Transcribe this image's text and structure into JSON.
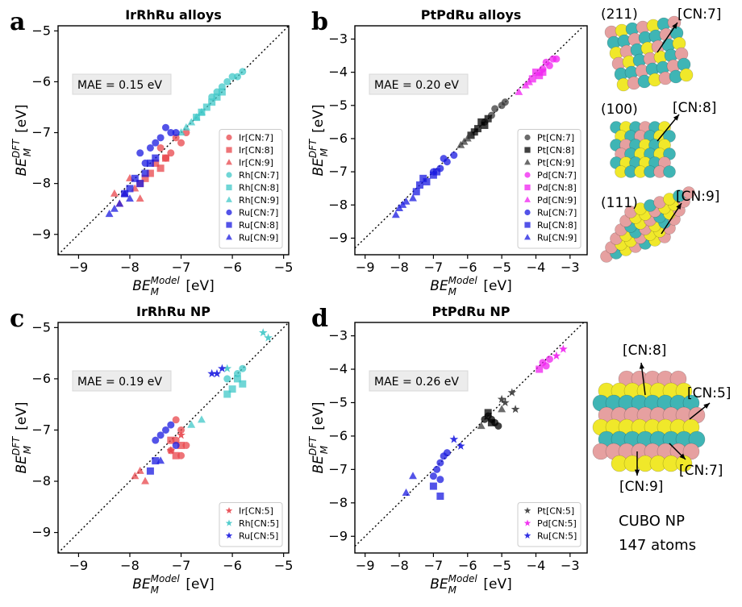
{
  "panel_letters": {
    "a": "a",
    "b": "b",
    "c": "c",
    "d": "d"
  },
  "side_panel": {
    "inset_211": {
      "facet": "(211)",
      "label": "[CN:7]"
    },
    "inset_100": {
      "facet": "(100)",
      "label": "[CN:8]"
    },
    "inset_111": {
      "facet": "(111)",
      "label": "[CN:9]"
    },
    "cubo_labels": {
      "cn8": "[CN:8]",
      "cn5": "[CN:5]",
      "cn7": "[CN:7]",
      "cn9": "[CN:9]"
    },
    "cubo_title": "CUBO NP",
    "cubo_atoms": "147 atoms"
  },
  "colors": {
    "red": "#e8454b",
    "cyan": "#40c8c8",
    "blue": "#1a1ae0",
    "grey": "#3a3a3a",
    "black": "#000000",
    "magenta": "#f020f0",
    "pink_atom": "#e6a0a0",
    "teal_atom": "#3fb5b5",
    "yellow_atom": "#f0e82a"
  },
  "chart_data": [
    {
      "id": "a",
      "type": "scatter",
      "title": "IrRhRu alloys",
      "xlabel_base": "BE",
      "xlabel_sub": "M",
      "xlabel_sup": "Model",
      "xlabel_unit": "[eV]",
      "ylabel_base": "BE",
      "ylabel_sub": "M",
      "ylabel_sup": "DFT",
      "ylabel_unit": "[eV]",
      "xlim": [
        -9.4,
        -4.9
      ],
      "ylim": [
        -9.4,
        -4.9
      ],
      "xticks": [
        -9,
        -8,
        -7,
        -6,
        -5
      ],
      "yticks": [
        -9,
        -8,
        -7,
        -6,
        -5
      ],
      "mae": "MAE = 0.15 eV",
      "legend_loc": "lower-right",
      "series": [
        {
          "name": "Ir[CN:7]",
          "color": "red",
          "marker": "circle",
          "x": [
            -7.2,
            -7.0,
            -7.4,
            -7.1,
            -6.9,
            -7.3
          ],
          "y": [
            -7.4,
            -7.2,
            -7.3,
            -7.1,
            -7.0,
            -7.5
          ]
        },
        {
          "name": "Ir[CN:8]",
          "color": "red",
          "marker": "square",
          "x": [
            -7.6,
            -7.5,
            -7.7,
            -7.4,
            -7.8,
            -7.3
          ],
          "y": [
            -7.8,
            -7.6,
            -7.9,
            -7.7,
            -8.0,
            -7.5
          ]
        },
        {
          "name": "Ir[CN:9]",
          "color": "red",
          "marker": "triangle",
          "x": [
            -8.1,
            -7.9,
            -8.2,
            -8.0,
            -7.8,
            -8.3
          ],
          "y": [
            -8.2,
            -8.1,
            -8.4,
            -7.9,
            -8.3,
            -8.2
          ]
        },
        {
          "name": "Rh[CN:7]",
          "color": "cyan",
          "marker": "circle",
          "x": [
            -6.1,
            -5.9,
            -6.3,
            -6.0,
            -5.8,
            -6.2,
            -6.4
          ],
          "y": [
            -6.0,
            -5.9,
            -6.2,
            -5.9,
            -5.8,
            -6.1,
            -6.3
          ]
        },
        {
          "name": "Rh[CN:8]",
          "color": "cyan",
          "marker": "square",
          "x": [
            -6.5,
            -6.3,
            -6.7,
            -6.4,
            -6.6,
            -6.2
          ],
          "y": [
            -6.5,
            -6.3,
            -6.7,
            -6.4,
            -6.6,
            -6.2
          ]
        },
        {
          "name": "Rh[CN:9]",
          "color": "cyan",
          "marker": "triangle",
          "x": [
            -6.9,
            -6.8,
            -7.0,
            -6.7,
            -6.6
          ],
          "y": [
            -6.9,
            -6.8,
            -7.0,
            -6.7,
            -6.6
          ]
        },
        {
          "name": "Ru[CN:7]",
          "color": "blue",
          "marker": "circle",
          "x": [
            -7.4,
            -7.6,
            -7.2,
            -7.8,
            -7.5,
            -7.3,
            -7.7,
            -7.1
          ],
          "y": [
            -7.1,
            -7.3,
            -7.0,
            -7.4,
            -7.2,
            -6.9,
            -7.6,
            -7.0
          ]
        },
        {
          "name": "Ru[CN:8]",
          "color": "blue",
          "marker": "square",
          "x": [
            -7.9,
            -7.7,
            -8.0,
            -7.6,
            -7.5,
            -8.1,
            -7.8
          ],
          "y": [
            -7.9,
            -7.8,
            -8.1,
            -7.6,
            -7.5,
            -8.2,
            -8.0
          ]
        },
        {
          "name": "Ru[CN:9]",
          "color": "blue",
          "marker": "triangle",
          "x": [
            -8.2,
            -8.1,
            -8.3,
            -8.0,
            -8.4
          ],
          "y": [
            -8.4,
            -8.2,
            -8.5,
            -8.3,
            -8.6
          ]
        }
      ]
    },
    {
      "id": "b",
      "type": "scatter",
      "title": "PtPdRu alloys",
      "xlabel_base": "BE",
      "xlabel_sub": "M",
      "xlabel_sup": "Model",
      "xlabel_unit": "[eV]",
      "ylabel_base": "BE",
      "ylabel_sub": "M",
      "ylabel_sup": "DFT",
      "ylabel_unit": "[eV]",
      "xlim": [
        -9.3,
        -2.5
      ],
      "ylim": [
        -9.5,
        -2.6
      ],
      "xticks": [
        -9,
        -8,
        -7,
        -6,
        -5,
        -4,
        -3
      ],
      "yticks": [
        -9,
        -8,
        -7,
        -6,
        -5,
        -4,
        -3
      ],
      "mae": "MAE = 0.20 eV",
      "legend_loc": "lower-right",
      "series": [
        {
          "name": "Pt[CN:7]",
          "color": "grey",
          "marker": "circle",
          "x": [
            -5.3,
            -5.0,
            -5.5,
            -4.9,
            -5.2
          ],
          "y": [
            -5.3,
            -5.0,
            -5.5,
            -4.9,
            -5.1
          ]
        },
        {
          "name": "Pt[CN:8]",
          "color": "black",
          "marker": "square",
          "x": [
            -5.7,
            -5.5,
            -5.9,
            -5.6,
            -5.8,
            -5.4
          ],
          "y": [
            -5.7,
            -5.6,
            -5.9,
            -5.5,
            -5.8,
            -5.4
          ]
        },
        {
          "name": "Pt[CN:9]",
          "color": "grey",
          "marker": "triangle",
          "x": [
            -6.1,
            -6.0,
            -6.2,
            -5.9
          ],
          "y": [
            -6.1,
            -6.0,
            -6.2,
            -5.9
          ]
        },
        {
          "name": "Pd[CN:7]",
          "color": "magenta",
          "marker": "circle",
          "x": [
            -3.6,
            -3.5,
            -3.8,
            -3.4,
            -3.7
          ],
          "y": [
            -3.8,
            -3.6,
            -3.9,
            -3.6,
            -3.7
          ]
        },
        {
          "name": "Pd[CN:8]",
          "color": "magenta",
          "marker": "square",
          "x": [
            -3.9,
            -4.0,
            -3.8,
            -4.1
          ],
          "y": [
            -4.1,
            -4.0,
            -4.0,
            -4.2
          ]
        },
        {
          "name": "Pd[CN:9]",
          "color": "magenta",
          "marker": "triangle",
          "x": [
            -4.3,
            -4.5,
            -4.2
          ],
          "y": [
            -4.4,
            -4.6,
            -4.3
          ]
        },
        {
          "name": "Ru[CN:7]",
          "color": "blue",
          "marker": "circle",
          "x": [
            -6.6,
            -6.8,
            -6.4,
            -7.0,
            -6.7
          ],
          "y": [
            -6.7,
            -6.9,
            -6.5,
            -7.0,
            -6.6
          ]
        },
        {
          "name": "Ru[CN:8]",
          "color": "blue",
          "marker": "square",
          "x": [
            -7.2,
            -7.4,
            -7.0,
            -7.5,
            -7.3,
            -6.9
          ],
          "y": [
            -7.3,
            -7.4,
            -7.1,
            -7.6,
            -7.2,
            -7.0
          ]
        },
        {
          "name": "Ru[CN:9]",
          "color": "blue",
          "marker": "triangle",
          "x": [
            -7.8,
            -8.0,
            -7.6,
            -8.1,
            -7.9
          ],
          "y": [
            -7.9,
            -8.1,
            -7.8,
            -8.3,
            -8.0
          ]
        }
      ]
    },
    {
      "id": "c",
      "type": "scatter",
      "title": "IrRhRu NP",
      "xlabel_base": "BE",
      "xlabel_sub": "M",
      "xlabel_sup": "Model",
      "xlabel_unit": "[eV]",
      "ylabel_base": "BE",
      "ylabel_sub": "M",
      "ylabel_sup": "DFT",
      "ylabel_unit": "[eV]",
      "xlim": [
        -9.4,
        -4.9
      ],
      "ylim": [
        -9.4,
        -4.9
      ],
      "xticks": [
        -9,
        -8,
        -7,
        -6,
        -5
      ],
      "yticks": [
        -9,
        -8,
        -7,
        -6,
        -5
      ],
      "mae": "MAE = 0.19 eV",
      "legend_loc": "lower-right",
      "scatter_bg": [
        {
          "color": "red",
          "marker": "circle",
          "x": [
            -7.0,
            -7.1,
            -6.9,
            -7.2,
            -7.0,
            -7.1
          ],
          "y": [
            -7.0,
            -7.2,
            -7.3,
            -7.4,
            -7.5,
            -6.8
          ]
        },
        {
          "color": "red",
          "marker": "square",
          "x": [
            -7.0,
            -7.1,
            -7.2
          ],
          "y": [
            -7.3,
            -7.5,
            -7.2
          ]
        },
        {
          "color": "red",
          "marker": "triangle",
          "x": [
            -7.9,
            -7.8,
            -7.7
          ],
          "y": [
            -7.9,
            -7.8,
            -8.0
          ]
        },
        {
          "color": "cyan",
          "marker": "square",
          "x": [
            -6.0,
            -5.9,
            -6.1,
            -5.8
          ],
          "y": [
            -6.2,
            -6.0,
            -6.3,
            -6.1
          ]
        },
        {
          "color": "cyan",
          "marker": "circle",
          "x": [
            -5.9,
            -5.8,
            -6.1
          ],
          "y": [
            -5.9,
            -5.8,
            -6.0
          ]
        },
        {
          "color": "cyan",
          "marker": "triangle",
          "x": [
            -6.6,
            -6.8
          ],
          "y": [
            -6.8,
            -6.9
          ]
        },
        {
          "color": "blue",
          "marker": "circle",
          "x": [
            -7.3,
            -7.2,
            -7.4,
            -7.5,
            -7.1
          ],
          "y": [
            -7.0,
            -6.9,
            -7.1,
            -7.2,
            -7.3
          ]
        },
        {
          "color": "blue",
          "marker": "square",
          "x": [
            -7.5,
            -7.6
          ],
          "y": [
            -7.6,
            -7.8
          ]
        },
        {
          "color": "blue",
          "marker": "triangle",
          "x": [
            -7.4
          ],
          "y": [
            -7.6
          ]
        }
      ],
      "series": [
        {
          "name": "Ir[CN:5]",
          "color": "red",
          "marker": "star",
          "x": [
            -7.0,
            -7.2
          ],
          "y": [
            -7.1,
            -7.4
          ]
        },
        {
          "name": "Rh[CN:5]",
          "color": "cyan",
          "marker": "star",
          "x": [
            -5.4,
            -5.3,
            -6.1
          ],
          "y": [
            -5.1,
            -5.2,
            -5.8
          ]
        },
        {
          "name": "Ru[CN:5]",
          "color": "blue",
          "marker": "star",
          "x": [
            -6.3,
            -6.2,
            -6.4
          ],
          "y": [
            -5.9,
            -5.8,
            -5.9
          ]
        }
      ]
    },
    {
      "id": "d",
      "type": "scatter",
      "title": "PtPdRu NP",
      "xlabel_base": "BE",
      "xlabel_sub": "M",
      "xlabel_sup": "Model",
      "xlabel_unit": "[eV]",
      "ylabel_base": "BE",
      "ylabel_sub": "M",
      "ylabel_sup": "DFT",
      "ylabel_unit": "[eV]",
      "xlim": [
        -9.3,
        -2.5
      ],
      "ylim": [
        -9.5,
        -2.6
      ],
      "xticks": [
        -9,
        -8,
        -7,
        -6,
        -5,
        -4,
        -3
      ],
      "yticks": [
        -9,
        -8,
        -7,
        -6,
        -5,
        -4,
        -3
      ],
      "mae": "MAE = 0.26 eV",
      "legend_loc": "lower-right",
      "scatter_bg": [
        {
          "color": "black",
          "marker": "circle",
          "x": [
            -5.4,
            -5.2,
            -5.3,
            -5.5,
            -5.1
          ],
          "y": [
            -5.4,
            -5.6,
            -5.5,
            -5.5,
            -5.7
          ]
        },
        {
          "color": "black",
          "marker": "square",
          "x": [
            -5.3,
            -5.4
          ],
          "y": [
            -5.6,
            -5.3
          ]
        },
        {
          "color": "grey",
          "marker": "triangle",
          "x": [
            -5.6,
            -5.0
          ],
          "y": [
            -5.7,
            -5.2
          ]
        },
        {
          "color": "magenta",
          "marker": "circle",
          "x": [
            -3.8,
            -3.6,
            -3.7
          ],
          "y": [
            -3.8,
            -3.7,
            -3.9
          ]
        },
        {
          "color": "magenta",
          "marker": "square",
          "x": [
            -3.9
          ],
          "y": [
            -4.0
          ]
        },
        {
          "color": "blue",
          "marker": "circle",
          "x": [
            -6.8,
            -6.9,
            -6.7,
            -7.0,
            -6.6,
            -6.8
          ],
          "y": [
            -6.8,
            -7.0,
            -6.6,
            -7.2,
            -6.5,
            -7.3
          ]
        },
        {
          "color": "blue",
          "marker": "square",
          "x": [
            -6.8,
            -7.0
          ],
          "y": [
            -7.8,
            -7.5
          ]
        },
        {
          "color": "blue",
          "marker": "triangle",
          "x": [
            -7.6,
            -7.8
          ],
          "y": [
            -7.2,
            -7.7
          ]
        }
      ],
      "series": [
        {
          "name": "Pt[CN:5]",
          "color": "grey",
          "marker": "star",
          "x": [
            -4.7,
            -4.9,
            -5.0,
            -4.6
          ],
          "y": [
            -4.7,
            -5.0,
            -4.9,
            -5.2
          ]
        },
        {
          "name": "Pd[CN:5]",
          "color": "magenta",
          "marker": "star",
          "x": [
            -3.2,
            -3.4
          ],
          "y": [
            -3.4,
            -3.6
          ]
        },
        {
          "name": "Ru[CN:5]",
          "color": "blue",
          "marker": "star",
          "x": [
            -6.2,
            -6.4
          ],
          "y": [
            -6.3,
            -6.1
          ]
        }
      ]
    }
  ]
}
